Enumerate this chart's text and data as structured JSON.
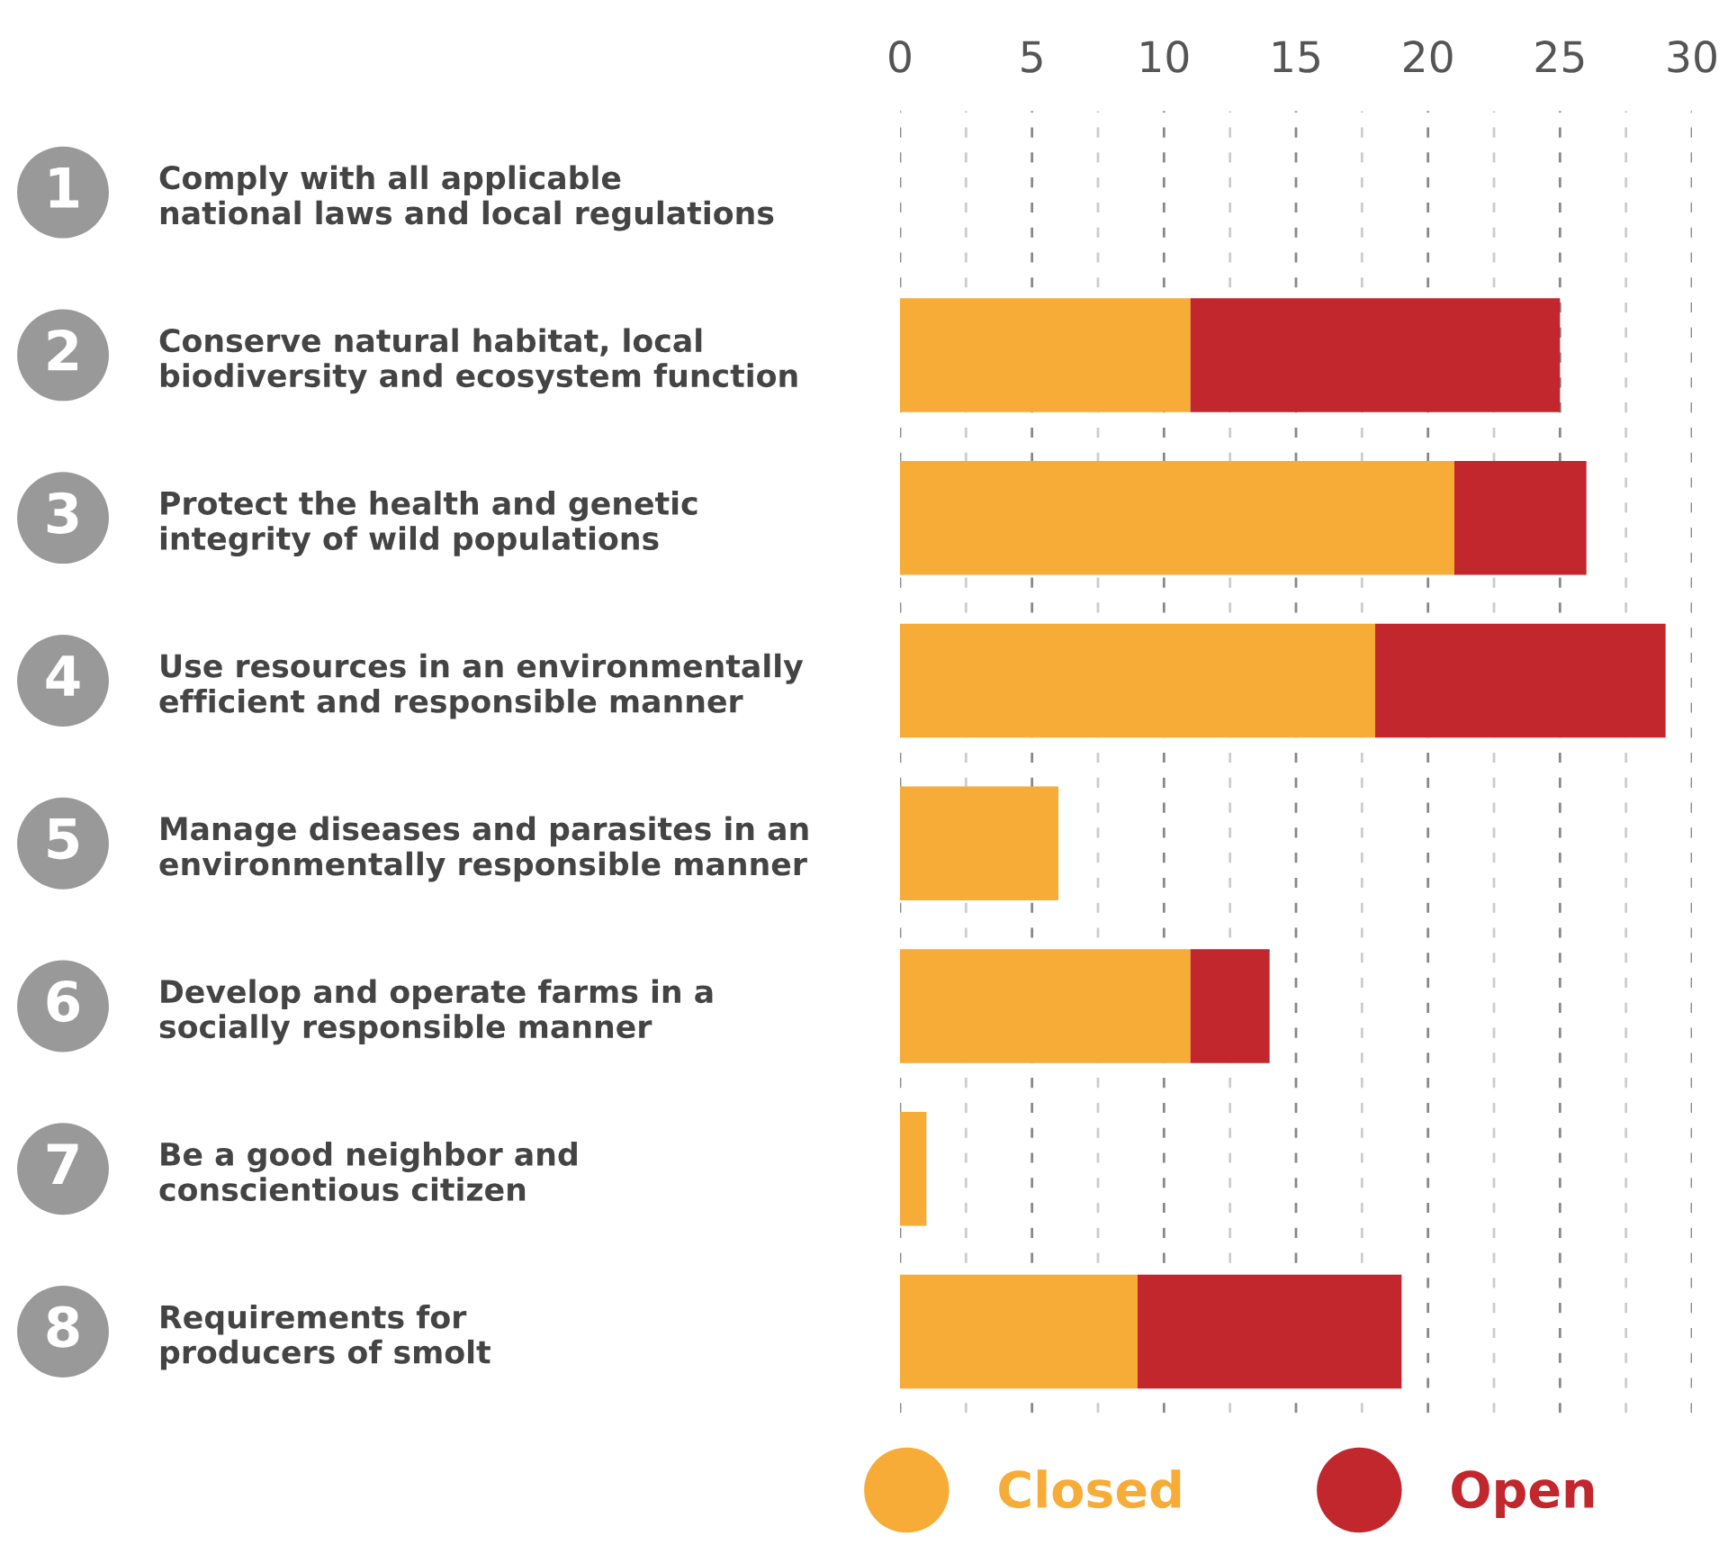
{
  "chart_data": {
    "type": "bar",
    "orientation": "horizontal",
    "stacked": true,
    "categories": [
      "Comply with all applicable\nnational laws and local regulations",
      "Conserve natural habitat, local\nbiodiversity and ecosystem function",
      "Protect the health and genetic\nintegrity of wild populations",
      "Use resources in an environmentally\nefficient and responsible manner",
      "Manage diseases and parasites in an\nenvironmentally responsible manner",
      "Develop and operate farms in a\nsocially responsible manner",
      "Be a good neighbor and\nconscientious citizen",
      "Requirements for\nproducers of smolt"
    ],
    "series": [
      {
        "name": "Closed",
        "color": "#f7ac38",
        "values": [
          0,
          11,
          21,
          18,
          6,
          11,
          1,
          9
        ]
      },
      {
        "name": "Open",
        "color": "#c1272d",
        "values": [
          0,
          14,
          5,
          11,
          0,
          3,
          0,
          10
        ]
      }
    ],
    "xlim": [
      0,
      30
    ],
    "xticks": [
      0,
      {
        "value": 2.5,
        "label": null
      },
      5,
      {
        "value": 7.5,
        "label": null
      },
      10,
      {
        "value": 12.5,
        "label": null
      },
      15,
      {
        "value": 17.5,
        "label": null
      },
      20,
      {
        "value": 22.5,
        "label": null
      },
      25,
      {
        "value": 27.5,
        "label": null
      },
      30
    ],
    "annotations": [
      "1",
      "2",
      "3",
      "4",
      "5",
      "6",
      "7",
      "8"
    ],
    "grid": "x",
    "legend": "bottom"
  }
}
